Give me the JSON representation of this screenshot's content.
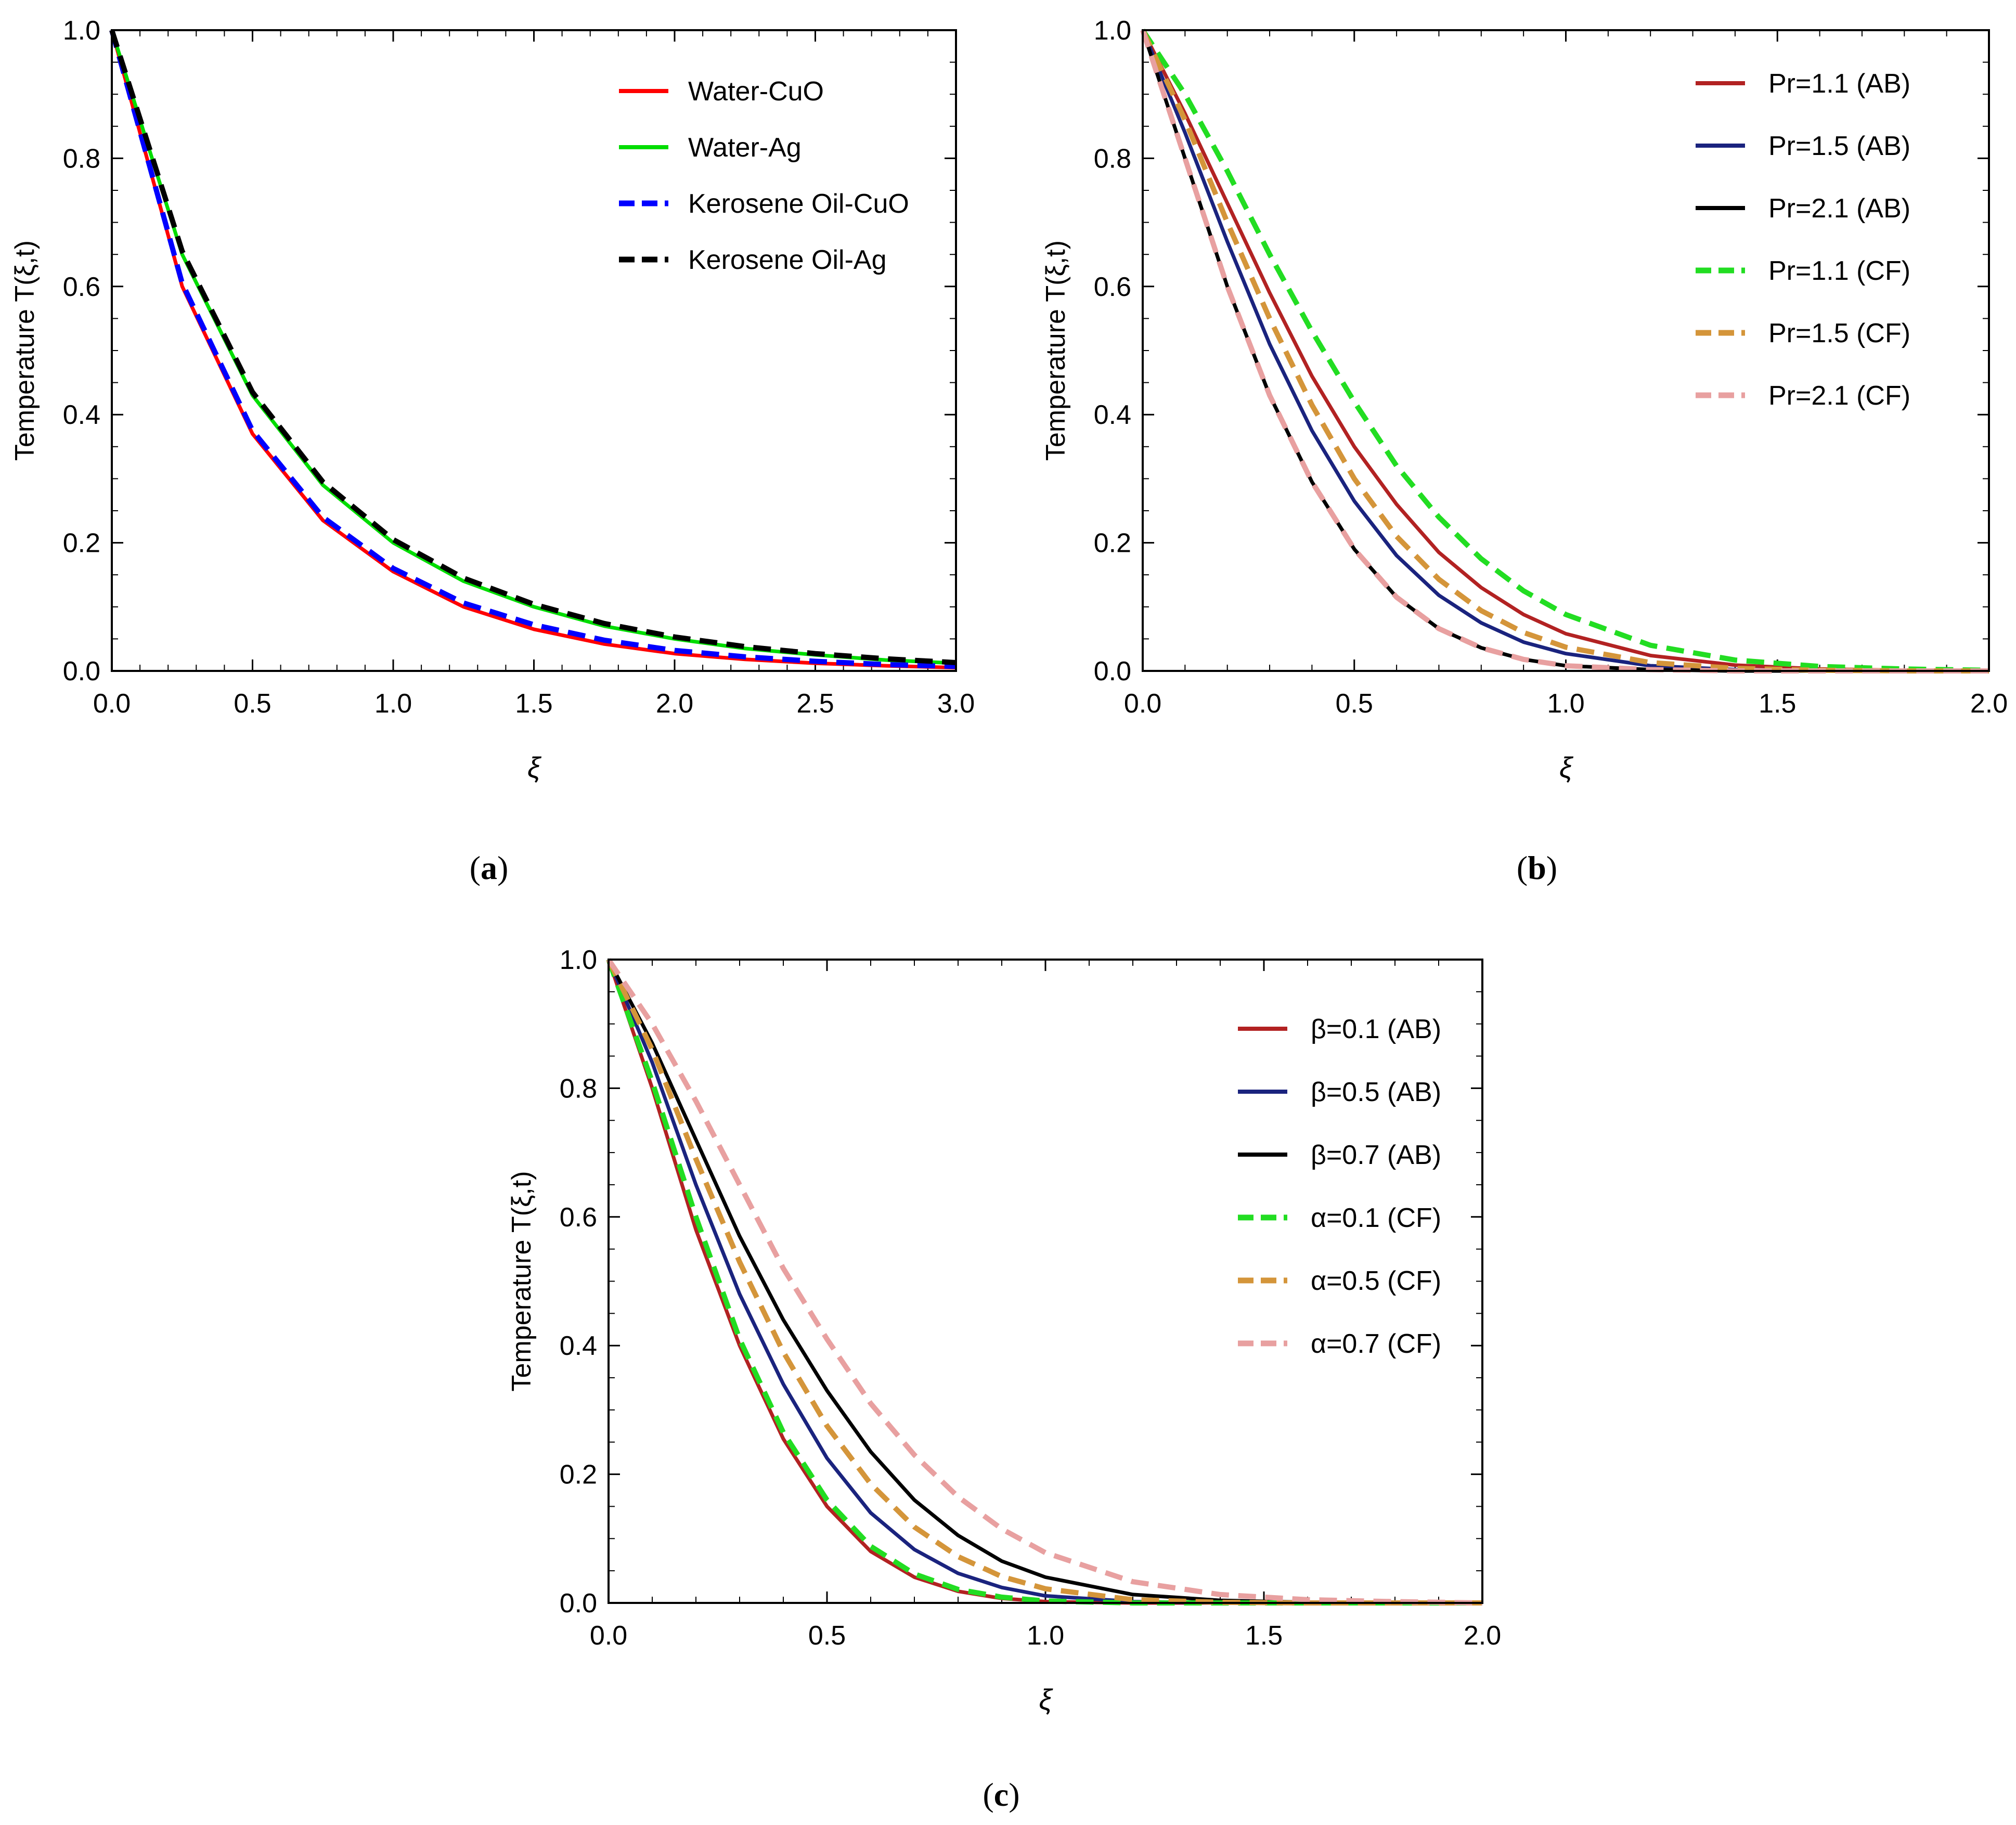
{
  "chart_data": [
    {
      "type": "line",
      "panel_label": "a",
      "title": "",
      "xlabel": "ξ",
      "ylabel": "Temperature T(ξ,t)",
      "xlim": [
        0,
        3.0
      ],
      "ylim": [
        0,
        1.0
      ],
      "xticks": [
        "0.0",
        "0.5",
        "1.0",
        "1.5",
        "2.0",
        "2.5",
        "3.0"
      ],
      "yticks": [
        "0.0",
        "0.2",
        "0.4",
        "0.6",
        "0.8",
        "1.0"
      ],
      "legend_position": "top-right",
      "x": [
        0,
        0.25,
        0.5,
        0.75,
        1.0,
        1.25,
        1.5,
        1.75,
        2.0,
        2.25,
        2.5,
        2.75,
        3.0
      ],
      "series": [
        {
          "name": "Water-CuO",
          "color": "#ff0000",
          "dash": "solid",
          "values": [
            1.0,
            0.6,
            0.37,
            0.235,
            0.155,
            0.1,
            0.065,
            0.042,
            0.027,
            0.018,
            0.012,
            0.008,
            0.005
          ]
        },
        {
          "name": "Water-Ag",
          "color": "#00dd00",
          "dash": "solid",
          "values": [
            1.0,
            0.65,
            0.43,
            0.29,
            0.2,
            0.14,
            0.1,
            0.07,
            0.05,
            0.035,
            0.025,
            0.017,
            0.012
          ]
        },
        {
          "name": "Kerosene Oil-CuO",
          "color": "#0000ff",
          "dash": "dashed",
          "values": [
            1.0,
            0.605,
            0.375,
            0.24,
            0.16,
            0.106,
            0.072,
            0.048,
            0.032,
            0.022,
            0.015,
            0.01,
            0.007
          ]
        },
        {
          "name": "Kerosene Oil-Ag",
          "color": "#000000",
          "dash": "dashed",
          "values": [
            1.0,
            0.655,
            0.435,
            0.295,
            0.205,
            0.145,
            0.104,
            0.074,
            0.053,
            0.038,
            0.027,
            0.019,
            0.013
          ]
        }
      ]
    },
    {
      "type": "line",
      "panel_label": "b",
      "title": "",
      "xlabel": "ξ",
      "ylabel": "Temperature T(ξ,t)",
      "xlim": [
        0,
        2.0
      ],
      "ylim": [
        0,
        1.0
      ],
      "xticks": [
        "0.0",
        "0.5",
        "1.0",
        "1.5",
        "2.0"
      ],
      "yticks": [
        "0.0",
        "0.2",
        "0.4",
        "0.6",
        "0.8",
        "1.0"
      ],
      "legend_position": "top-right",
      "x": [
        0,
        0.1,
        0.2,
        0.3,
        0.4,
        0.5,
        0.6,
        0.7,
        0.8,
        0.9,
        1.0,
        1.2,
        1.4,
        1.6,
        1.8,
        2.0
      ],
      "series": [
        {
          "name": "Pr=1.1 (AB)",
          "color": "#b22222",
          "dash": "solid",
          "values": [
            1.0,
            0.87,
            0.73,
            0.59,
            0.46,
            0.35,
            0.26,
            0.185,
            0.13,
            0.088,
            0.058,
            0.024,
            0.009,
            0.003,
            0.001,
            0.0
          ]
        },
        {
          "name": "Pr=1.5 (AB)",
          "color": "#1a237e",
          "dash": "solid",
          "values": [
            1.0,
            0.84,
            0.67,
            0.51,
            0.375,
            0.265,
            0.18,
            0.118,
            0.075,
            0.045,
            0.027,
            0.008,
            0.002,
            0.0,
            0.0,
            0.0
          ]
        },
        {
          "name": "Pr=2.1 (AB)",
          "color": "#000000",
          "dash": "solid",
          "values": [
            1.0,
            0.8,
            0.6,
            0.43,
            0.295,
            0.19,
            0.115,
            0.066,
            0.036,
            0.018,
            0.008,
            0.002,
            0.0,
            0.0,
            0.0,
            0.0
          ]
        },
        {
          "name": "Pr=1.1 (CF)",
          "color": "#22dd22",
          "dash": "dashed",
          "values": [
            1.0,
            0.9,
            0.78,
            0.65,
            0.53,
            0.42,
            0.32,
            0.24,
            0.175,
            0.125,
            0.088,
            0.04,
            0.017,
            0.007,
            0.003,
            0.001
          ]
        },
        {
          "name": "Pr=1.5 (CF)",
          "color": "#d4953a",
          "dash": "dashed",
          "values": [
            1.0,
            0.86,
            0.7,
            0.55,
            0.415,
            0.3,
            0.21,
            0.143,
            0.094,
            0.06,
            0.037,
            0.013,
            0.004,
            0.001,
            0.0,
            0.0
          ]
        },
        {
          "name": "Pr=2.1 (CF)",
          "color": "#e8a0a0",
          "dash": "dashed",
          "values": [
            1.0,
            0.8,
            0.6,
            0.43,
            0.295,
            0.19,
            0.115,
            0.066,
            0.036,
            0.018,
            0.008,
            0.002,
            0.0,
            0.0,
            0.0,
            0.0
          ]
        }
      ]
    },
    {
      "type": "line",
      "panel_label": "c",
      "title": "",
      "xlabel": "ξ",
      "ylabel": "Temperature T(ξ,t)",
      "xlim": [
        0,
        2.0
      ],
      "ylim": [
        0,
        1.0
      ],
      "xticks": [
        "0.0",
        "0.5",
        "1.0",
        "1.5",
        "2.0"
      ],
      "yticks": [
        "0.0",
        "0.2",
        "0.4",
        "0.6",
        "0.8",
        "1.0"
      ],
      "legend_position": "top-right",
      "x": [
        0,
        0.1,
        0.2,
        0.3,
        0.4,
        0.5,
        0.6,
        0.7,
        0.8,
        0.9,
        1.0,
        1.2,
        1.4,
        1.6,
        1.8,
        2.0
      ],
      "series": [
        {
          "name": "β=0.1 (AB)",
          "color": "#b22222",
          "dash": "solid",
          "values": [
            1.0,
            0.8,
            0.58,
            0.4,
            0.255,
            0.15,
            0.08,
            0.04,
            0.018,
            0.007,
            0.002,
            0.0,
            0.0,
            0.0,
            0.0,
            0.0
          ]
        },
        {
          "name": "β=0.5 (AB)",
          "color": "#1a237e",
          "dash": "solid",
          "values": [
            1.0,
            0.84,
            0.65,
            0.48,
            0.34,
            0.225,
            0.14,
            0.083,
            0.046,
            0.024,
            0.011,
            0.002,
            0.0,
            0.0,
            0.0,
            0.0
          ]
        },
        {
          "name": "β=0.7 (AB)",
          "color": "#000000",
          "dash": "solid",
          "values": [
            1.0,
            0.87,
            0.72,
            0.57,
            0.44,
            0.33,
            0.235,
            0.16,
            0.105,
            0.065,
            0.04,
            0.013,
            0.004,
            0.001,
            0.0,
            0.0
          ]
        },
        {
          "name": "α=0.1 (CF)",
          "color": "#22dd22",
          "dash": "dashed",
          "values": [
            1.0,
            0.81,
            0.6,
            0.41,
            0.265,
            0.16,
            0.088,
            0.045,
            0.021,
            0.009,
            0.003,
            0.0,
            0.0,
            0.0,
            0.0,
            0.0
          ]
        },
        {
          "name": "α=0.5 (CF)",
          "color": "#d4953a",
          "dash": "dashed",
          "values": [
            1.0,
            0.86,
            0.69,
            0.53,
            0.39,
            0.275,
            0.185,
            0.118,
            0.072,
            0.041,
            0.022,
            0.005,
            0.001,
            0.0,
            0.0,
            0.0
          ]
        },
        {
          "name": "α=0.7 (CF)",
          "color": "#e8a0a0",
          "dash": "dashed",
          "values": [
            1.0,
            0.9,
            0.78,
            0.65,
            0.52,
            0.41,
            0.31,
            0.23,
            0.165,
            0.115,
            0.078,
            0.033,
            0.013,
            0.005,
            0.002,
            0.0
          ]
        }
      ]
    }
  ]
}
